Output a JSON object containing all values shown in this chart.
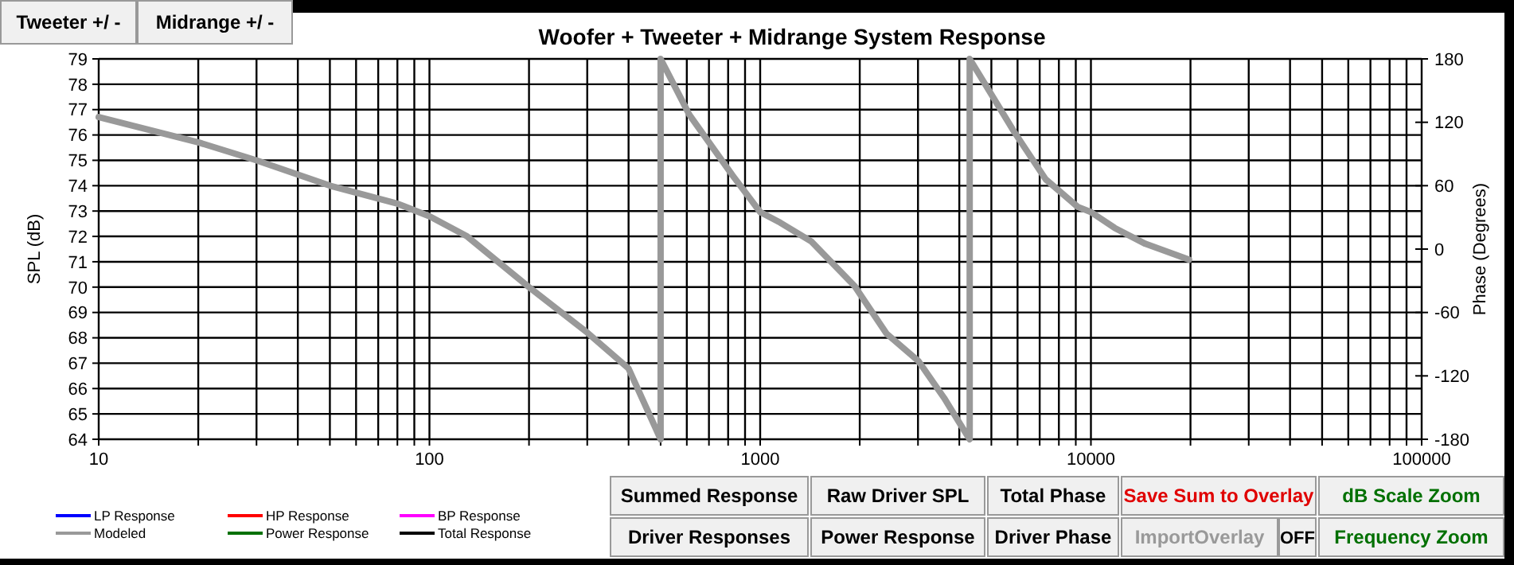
{
  "chart_data": {
    "type": "line",
    "title": "Woofer + Tweeter + Midrange  System Response",
    "xlabel": null,
    "ylabel": "SPL (dB)",
    "y2label": "Phase (Degrees)",
    "log": "x",
    "grid": true,
    "legend": "bottom left",
    "line_style": "solid",
    "marker": "none",
    "xlim": [
      10,
      100000
    ],
    "xticks": [
      10,
      {
        "value": 20,
        "label": null
      },
      {
        "value": 30,
        "label": null
      },
      {
        "value": 40,
        "label": null
      },
      {
        "value": 50,
        "label": null
      },
      {
        "value": 60,
        "label": null
      },
      {
        "value": 70,
        "label": null
      },
      {
        "value": 80,
        "label": null
      },
      {
        "value": 90,
        "label": null
      },
      100,
      {
        "value": 200,
        "label": null
      },
      {
        "value": 300,
        "label": null
      },
      {
        "value": 400,
        "label": null
      },
      {
        "value": 500,
        "label": null
      },
      {
        "value": 600,
        "label": null
      },
      {
        "value": 700,
        "label": null
      },
      {
        "value": 800,
        "label": null
      },
      {
        "value": 900,
        "label": null
      },
      1000,
      {
        "value": 2000,
        "label": null
      },
      {
        "value": 3000,
        "label": null
      },
      {
        "value": 4000,
        "label": null
      },
      {
        "value": 5000,
        "label": null
      },
      {
        "value": 6000,
        "label": null
      },
      {
        "value": 7000,
        "label": null
      },
      {
        "value": 8000,
        "label": null
      },
      {
        "value": 9000,
        "label": null
      },
      10000,
      {
        "value": 20000,
        "label": null
      },
      {
        "value": 30000,
        "label": null
      },
      {
        "value": 40000,
        "label": null
      },
      {
        "value": 50000,
        "label": null
      },
      {
        "value": 60000,
        "label": null
      },
      {
        "value": 70000,
        "label": null
      },
      {
        "value": 80000,
        "label": null
      },
      {
        "value": 90000,
        "label": null
      },
      100000
    ],
    "ylim": [
      64,
      79
    ],
    "yticks": [
      64,
      65,
      66,
      67,
      68,
      69,
      70,
      71,
      72,
      73,
      74,
      75,
      76,
      77,
      78,
      79
    ],
    "y2lim": [
      -180,
      180
    ],
    "y2ticks": [
      -180,
      -120,
      -60,
      0,
      60,
      120,
      180
    ],
    "series": [
      {
        "name": "LP Response",
        "color": "#0000ff"
      },
      {
        "name": "Modeled",
        "color": "#999999",
        "axis": "y2",
        "x": [
          10,
          20,
          30,
          50,
          80,
          100,
          130,
          200,
          300,
          400,
          500,
          500,
          611,
          824,
          1000,
          1150,
          1430,
          1930,
          2410,
          3010,
          3600,
          4200,
          4300,
          4300,
          5860,
          7300,
          9120,
          10000,
          11800,
          14600,
          19800
        ],
        "values": [
          125,
          101,
          84,
          60,
          43,
          31,
          12,
          -36,
          -79,
          -113,
          -180,
          180,
          127,
          70,
          35,
          25,
          7,
          -35,
          -80,
          -106,
          -141,
          -175,
          -180,
          180,
          111,
          66,
          40,
          35,
          20,
          5,
          -10
        ]
      },
      {
        "name": "HP Response",
        "color": "#ff0000"
      },
      {
        "name": "Power Response",
        "color": "#007000"
      },
      {
        "name": "BP Response",
        "color": "#ff00ff"
      },
      {
        "name": "Total Response",
        "color": "#000000"
      }
    ],
    "annotations": [
      "Tweeter +/ -",
      "Midrange  +/ -",
      "Summed Response",
      "Raw Driver SPL",
      "Total Phase",
      "Save Sum to Overlay",
      "dB Scale Zoom",
      "Driver Responses",
      "Power Response",
      "Driver Phase",
      "ImportOverlay",
      "OFF",
      "Frequency Zoom"
    ]
  }
}
